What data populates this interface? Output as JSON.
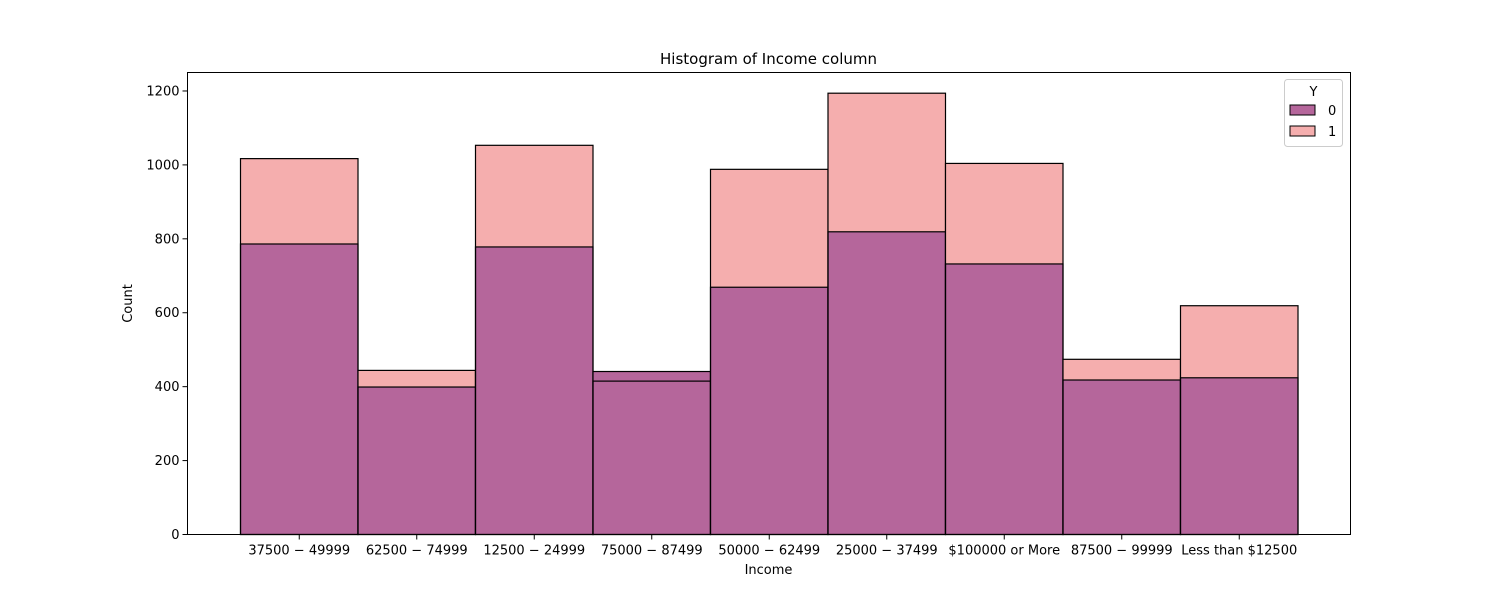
{
  "chart_data": {
    "type": "bar",
    "title": "Histogram of Income column",
    "xlabel": "Income",
    "ylabel": "Count",
    "categories": [
      "$37500 - $49999",
      "$62500 - $74999",
      "$12500 - $24999",
      "$75000 - $87499",
      "$50000 - $62499",
      "$25000 - $37499",
      "$100000 or More",
      "$87500 - $99999",
      "Less than $12500"
    ],
    "tick_labels": [
      "37500 − 49999",
      "62500 − 74999",
      "12500 − 24999",
      "75000 − 87499",
      "50000 − 62499",
      "25000 − 37499",
      "$100000 or More",
      "87500 − 99999",
      "Less than $12500"
    ],
    "series": [
      {
        "name": "0",
        "color": "#b5669b",
        "values": [
          786,
          399,
          778,
          441,
          669,
          819,
          732,
          418,
          424
        ]
      },
      {
        "name": "1",
        "color": "#f5aeae",
        "values": [
          1017,
          444,
          1053,
          415,
          988,
          1194,
          1004,
          474,
          619
        ]
      }
    ],
    "overlap_color": "#b5669b",
    "ylim": [
      0,
      1250
    ],
    "yticks": [
      0,
      200,
      400,
      600,
      800,
      1000,
      1200
    ],
    "legend": {
      "title": "Y",
      "placement": "top-right"
    },
    "grid": false
  }
}
